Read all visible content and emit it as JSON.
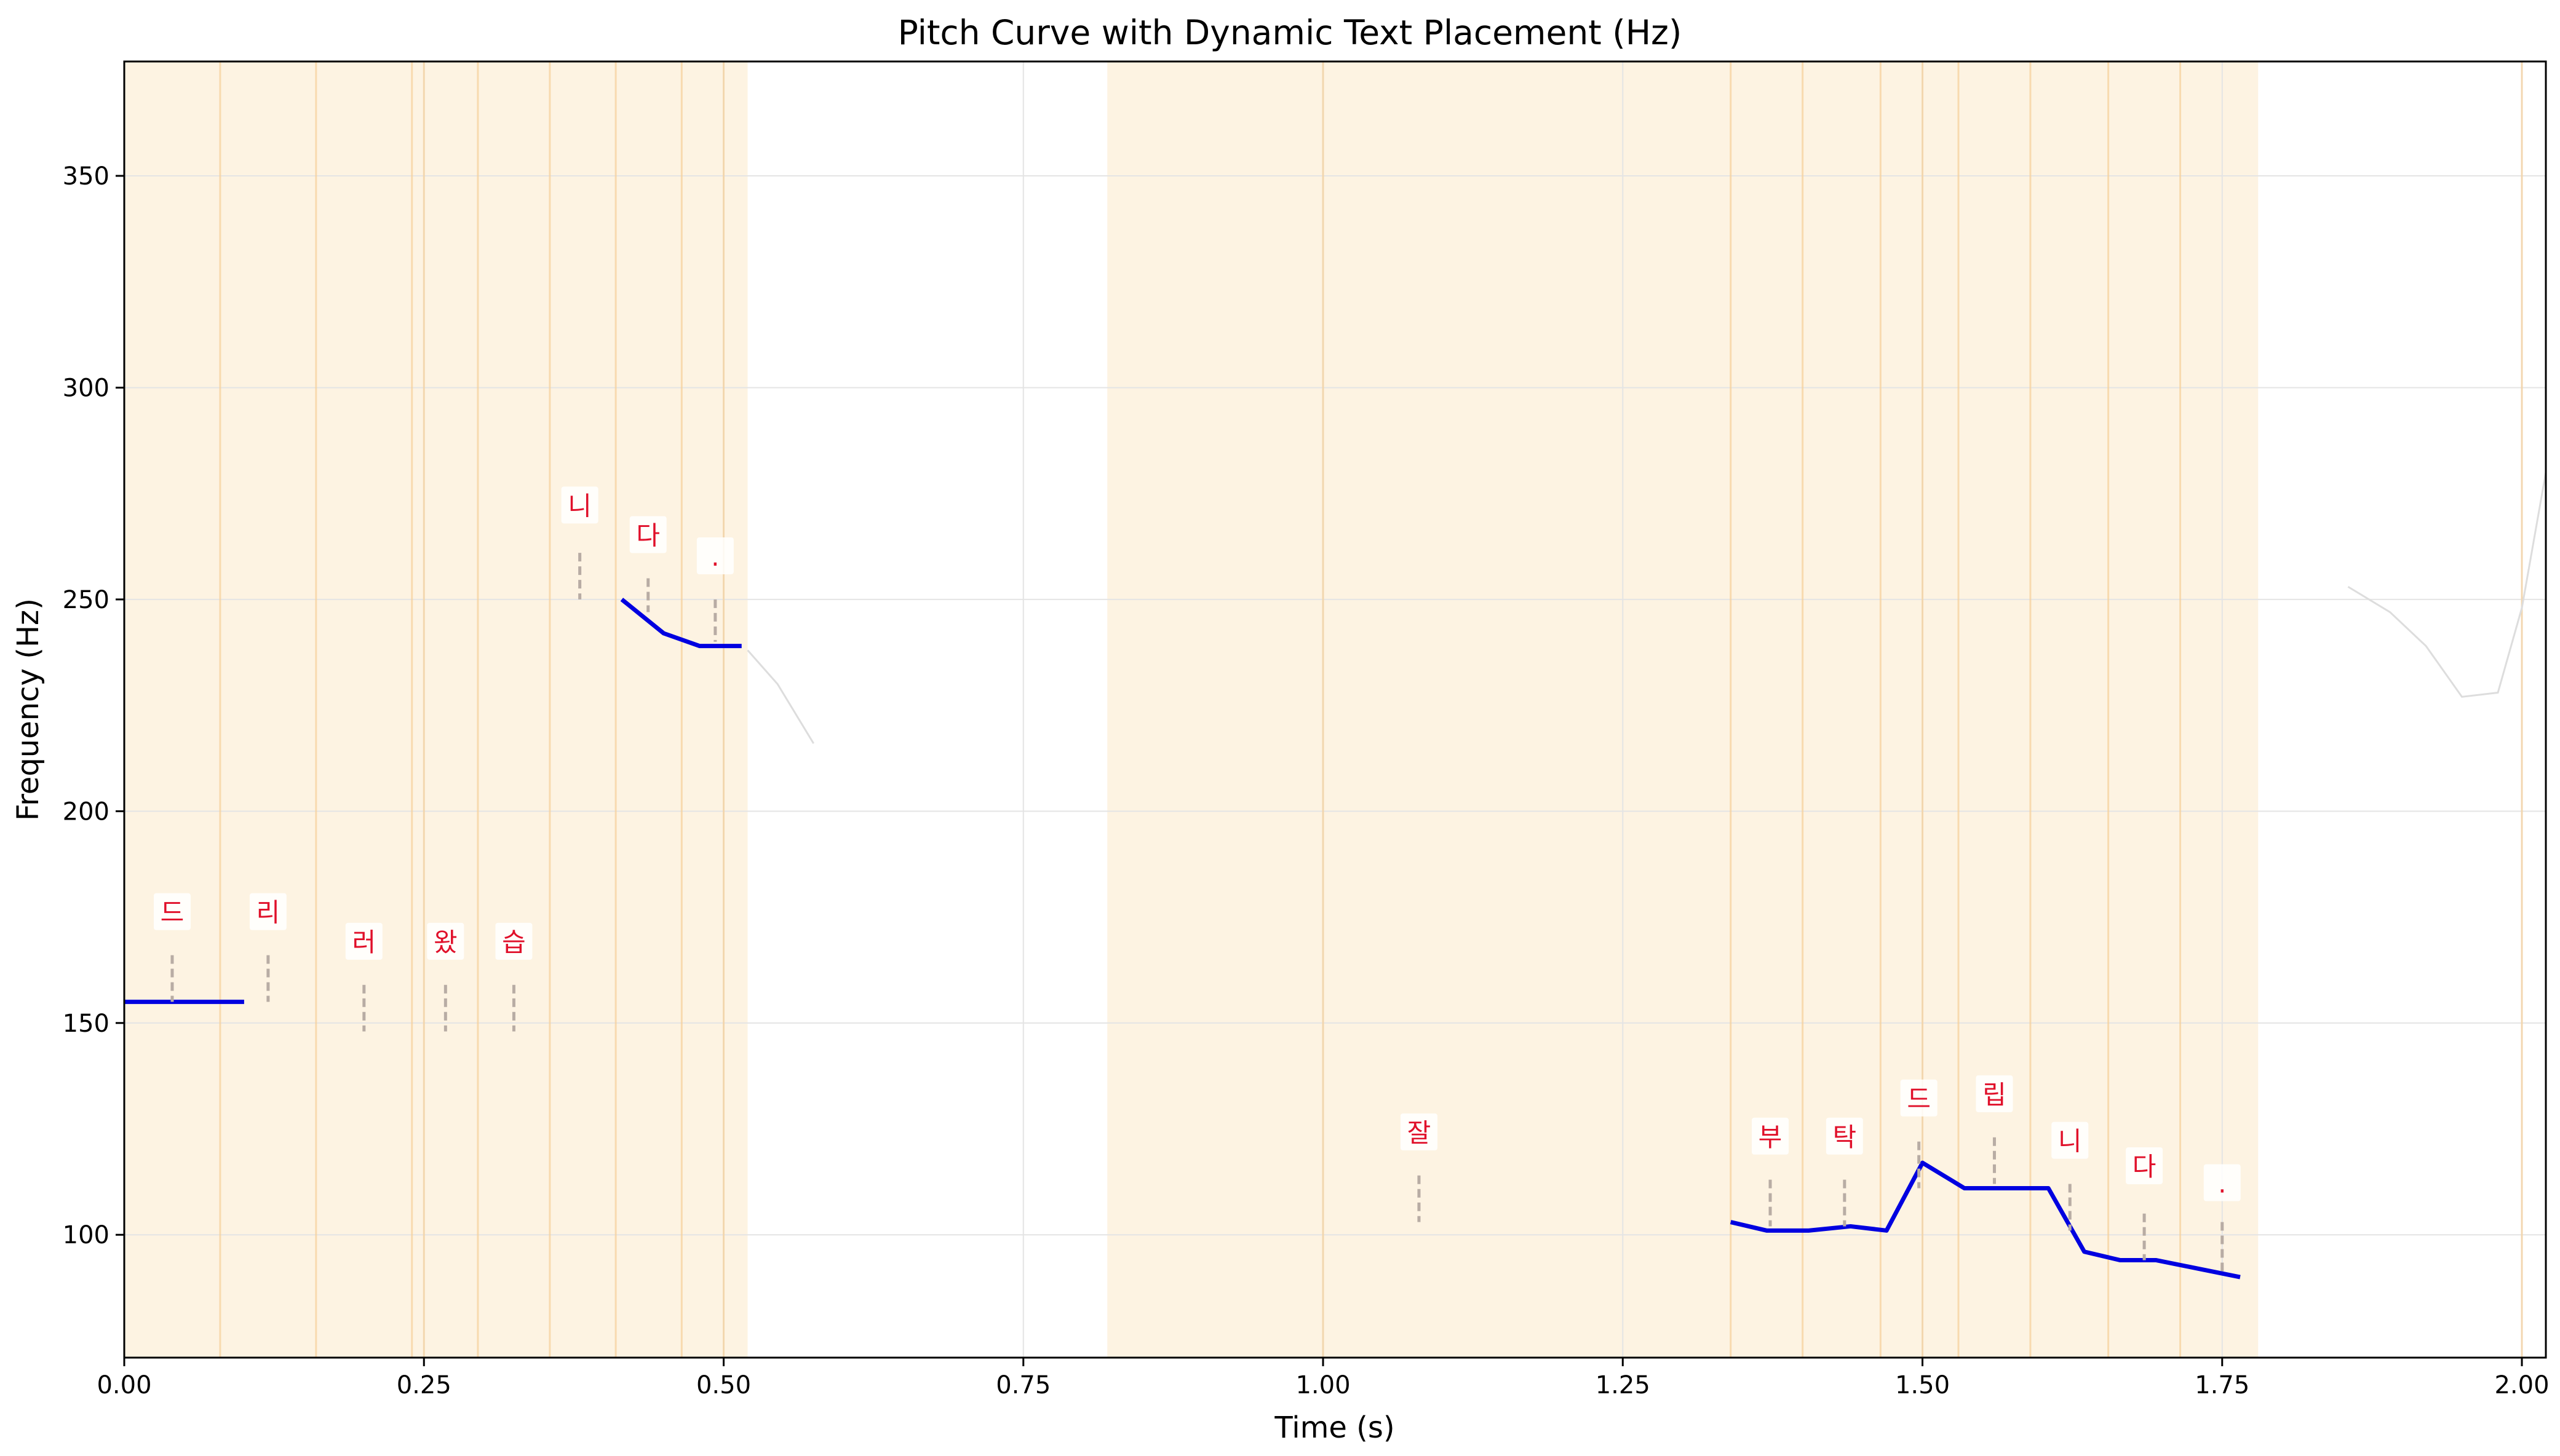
{
  "chart_data": {
    "type": "line",
    "title": "Pitch Curve with Dynamic Text Placement (Hz)",
    "xlabel": "Time (s)",
    "ylabel": "Frequency (Hz)",
    "xlim": [
      0.0,
      2.02
    ],
    "ylim": [
      71,
      377
    ],
    "x_ticks": [
      "0.00",
      "0.25",
      "0.50",
      "0.75",
      "1.00",
      "1.25",
      "1.50",
      "1.75",
      "2.00"
    ],
    "y_ticks": [
      "100",
      "150",
      "200",
      "250",
      "300",
      "350"
    ],
    "grid": true,
    "colors": {
      "pitch": "#0000e0",
      "raw_pitch": "#dddddd",
      "segment_fill": "#fdf3e2",
      "segment_line": "#f5d29e",
      "label": "#e0102a",
      "connector": "#b8aca4"
    },
    "segments": [
      {
        "start": 0.0,
        "end": 0.52
      },
      {
        "start": 0.82,
        "end": 1.78
      }
    ],
    "char_boundaries": [
      0.08,
      0.16,
      0.24,
      0.25,
      0.295,
      0.355,
      0.41,
      0.465,
      0.5,
      1.0,
      1.34,
      1.4,
      1.465,
      1.5,
      1.53,
      1.59,
      1.655,
      1.715,
      2.0
    ],
    "raw_pitch": [
      [
        {
          "x": 0.52,
          "y": 238
        },
        {
          "x": 0.545,
          "y": 230
        },
        {
          "x": 0.575,
          "y": 216
        }
      ],
      [
        {
          "x": 1.855,
          "y": 253
        },
        {
          "x": 1.89,
          "y": 247
        },
        {
          "x": 1.92,
          "y": 239
        },
        {
          "x": 1.95,
          "y": 227
        },
        {
          "x": 1.98,
          "y": 228
        },
        {
          "x": 2.0,
          "y": 248
        },
        {
          "x": 2.02,
          "y": 280
        }
      ]
    ],
    "pitch_series": [
      [
        {
          "x": 0.0,
          "y": 155
        },
        {
          "x": 0.1,
          "y": 155
        }
      ],
      [
        {
          "x": 0.415,
          "y": 250
        },
        {
          "x": 0.45,
          "y": 242
        },
        {
          "x": 0.48,
          "y": 239
        },
        {
          "x": 0.515,
          "y": 239
        }
      ],
      [
        {
          "x": 1.34,
          "y": 103
        },
        {
          "x": 1.37,
          "y": 101
        },
        {
          "x": 1.405,
          "y": 101
        },
        {
          "x": 1.44,
          "y": 102
        },
        {
          "x": 1.47,
          "y": 101
        },
        {
          "x": 1.5,
          "y": 117
        },
        {
          "x": 1.535,
          "y": 111
        },
        {
          "x": 1.57,
          "y": 111
        },
        {
          "x": 1.605,
          "y": 111
        },
        {
          "x": 1.635,
          "y": 96
        },
        {
          "x": 1.665,
          "y": 94
        },
        {
          "x": 1.695,
          "y": 94
        },
        {
          "x": 1.73,
          "y": 92
        },
        {
          "x": 1.765,
          "y": 90
        }
      ]
    ],
    "annotations": [
      {
        "text": "드",
        "x": 0.04,
        "y": 176,
        "line_top": 166,
        "line_bottom": 155
      },
      {
        "text": "리",
        "x": 0.12,
        "y": 176,
        "line_top": 166,
        "line_bottom": 155
      },
      {
        "text": "러",
        "x": 0.2,
        "y": 169,
        "line_top": 159,
        "line_bottom": 148
      },
      {
        "text": "왔",
        "x": 0.268,
        "y": 169,
        "line_top": 159,
        "line_bottom": 148
      },
      {
        "text": "습",
        "x": 0.325,
        "y": 169,
        "line_top": 159,
        "line_bottom": 148
      },
      {
        "text": "니",
        "x": 0.38,
        "y": 272,
        "line_top": 261,
        "line_bottom": 250
      },
      {
        "text": "다",
        "x": 0.437,
        "y": 265,
        "line_top": 255,
        "line_bottom": 247
      },
      {
        "text": ".",
        "x": 0.493,
        "y": 260,
        "line_top": 250,
        "line_bottom": 240
      },
      {
        "text": "잘",
        "x": 1.08,
        "y": 124,
        "line_top": 114,
        "line_bottom": 103
      },
      {
        "text": "부",
        "x": 1.373,
        "y": 123,
        "line_top": 113,
        "line_bottom": 102
      },
      {
        "text": "탁",
        "x": 1.435,
        "y": 123,
        "line_top": 113,
        "line_bottom": 102
      },
      {
        "text": "드",
        "x": 1.497,
        "y": 132,
        "line_top": 122,
        "line_bottom": 111
      },
      {
        "text": "립",
        "x": 1.56,
        "y": 133,
        "line_top": 123,
        "line_bottom": 112
      },
      {
        "text": "니",
        "x": 1.623,
        "y": 122,
        "line_top": 112,
        "line_bottom": 101
      },
      {
        "text": "다",
        "x": 1.685,
        "y": 116,
        "line_top": 105,
        "line_bottom": 94
      },
      {
        "text": ".",
        "x": 1.75,
        "y": 112,
        "line_top": 103,
        "line_bottom": 91
      }
    ]
  }
}
